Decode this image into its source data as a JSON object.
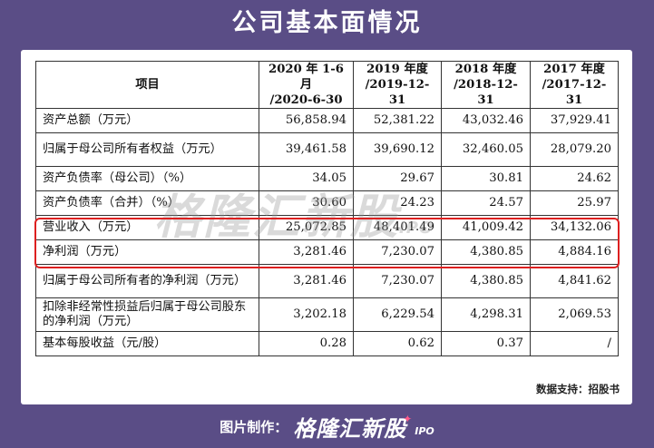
{
  "title": "公司基本面情况",
  "table": {
    "header": {
      "item": "项目",
      "periods": [
        [
          "2020 年 1-6 月",
          "/2020-6-30"
        ],
        [
          "2019 年度",
          "/2019-12-31"
        ],
        [
          "2018 年度",
          "/2018-12-31"
        ],
        [
          "2017 年度",
          "/2017-12-31"
        ]
      ]
    },
    "rows": [
      {
        "label": "资产总额（万元）",
        "values": [
          "56,858.94",
          "52,381.22",
          "43,032.46",
          "37,929.41"
        ]
      },
      {
        "label": "归属于母公司所有者权益（万元）",
        "values": [
          "39,461.58",
          "39,690.12",
          "32,460.05",
          "28,079.20"
        ]
      },
      {
        "label": "资产负债率（母公司）（%）",
        "values": [
          "34.05",
          "29.67",
          "30.81",
          "24.62"
        ]
      },
      {
        "label": "资产负债率（合并）（%）",
        "values": [
          "30.60",
          "24.23",
          "24.57",
          "25.97"
        ]
      },
      {
        "label": "营业收入（万元）",
        "values": [
          "25,072.85",
          "48,401.49",
          "41,009.42",
          "34,132.06"
        ]
      },
      {
        "label": "净利润（万元）",
        "values": [
          "3,281.46",
          "7,230.07",
          "4,380.85",
          "4,884.16"
        ]
      },
      {
        "label": "归属于母公司所有者的净利润（万元）",
        "values": [
          "3,281.46",
          "7,230.07",
          "4,380.85",
          "4,841.62"
        ]
      },
      {
        "label": "扣除非经常性损益后归属于母公司股东的净利润（万元）",
        "values": [
          "3,202.18",
          "6,229.54",
          "4,298.31",
          "2,069.53"
        ]
      },
      {
        "label": "基本每股收益（元/股）",
        "values": [
          "0.28",
          "0.62",
          "0.37",
          "/"
        ]
      }
    ]
  },
  "watermark": {
    "text": "格隆汇新股",
    "sub": "IPO"
  },
  "source_note": "数据支持：招股书",
  "footer": {
    "credit": "图片制作：",
    "brand": "格隆汇新股",
    "brand_sub": "IPO"
  },
  "colors": {
    "background": "#5a4d86",
    "highlight": "#dd2020",
    "accent": "#ff5b8a"
  }
}
